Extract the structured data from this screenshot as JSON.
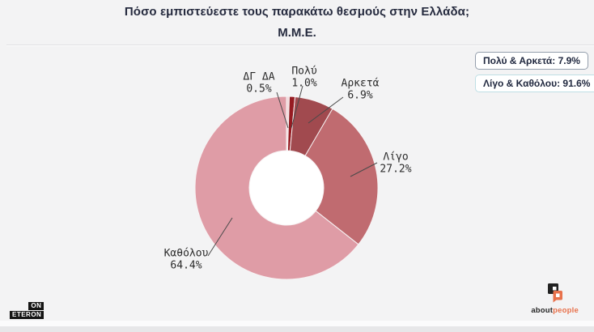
{
  "title": "Πόσο εμπιστεύεστε τους παρακάτω θεσμούς στην Ελλάδα;",
  "subtitle": "Μ.Μ.Ε.",
  "summary_badges": [
    {
      "label": "Πολύ & Αρκετά: 7.9%",
      "border_color": "#949eac"
    },
    {
      "label": "Λίγο & Καθόλου: 91.6%",
      "border_color": "#bfdfe5"
    }
  ],
  "chart_data": {
    "type": "pie",
    "donut": true,
    "direction": "clockwise",
    "start_angle_deg": 0,
    "title": "Μ.Μ.Ε.",
    "slices": [
      {
        "label": "ΔΓ ΔΑ",
        "value": 0.5,
        "pct_text": "0.5%",
        "color": "#f2dadc"
      },
      {
        "label": "Πολύ",
        "value": 1.0,
        "pct_text": "1.0%",
        "color": "#961b22"
      },
      {
        "label": "Αρκετά",
        "value": 6.9,
        "pct_text": "6.9%",
        "color": "#a14a4f"
      },
      {
        "label": "Λίγο",
        "value": 27.2,
        "pct_text": "27.2%",
        "color": "#c06b70"
      },
      {
        "label": "Καθόλου",
        "value": 64.4,
        "pct_text": "64.4%",
        "color": "#df9ca6"
      }
    ]
  },
  "footer": {
    "eteron_logo": {
      "line1": "ON",
      "line2": "ETERON"
    },
    "aboutpeople_logo": {
      "text_black": "about",
      "text_orange": "people",
      "orange": "#e8714b"
    }
  }
}
